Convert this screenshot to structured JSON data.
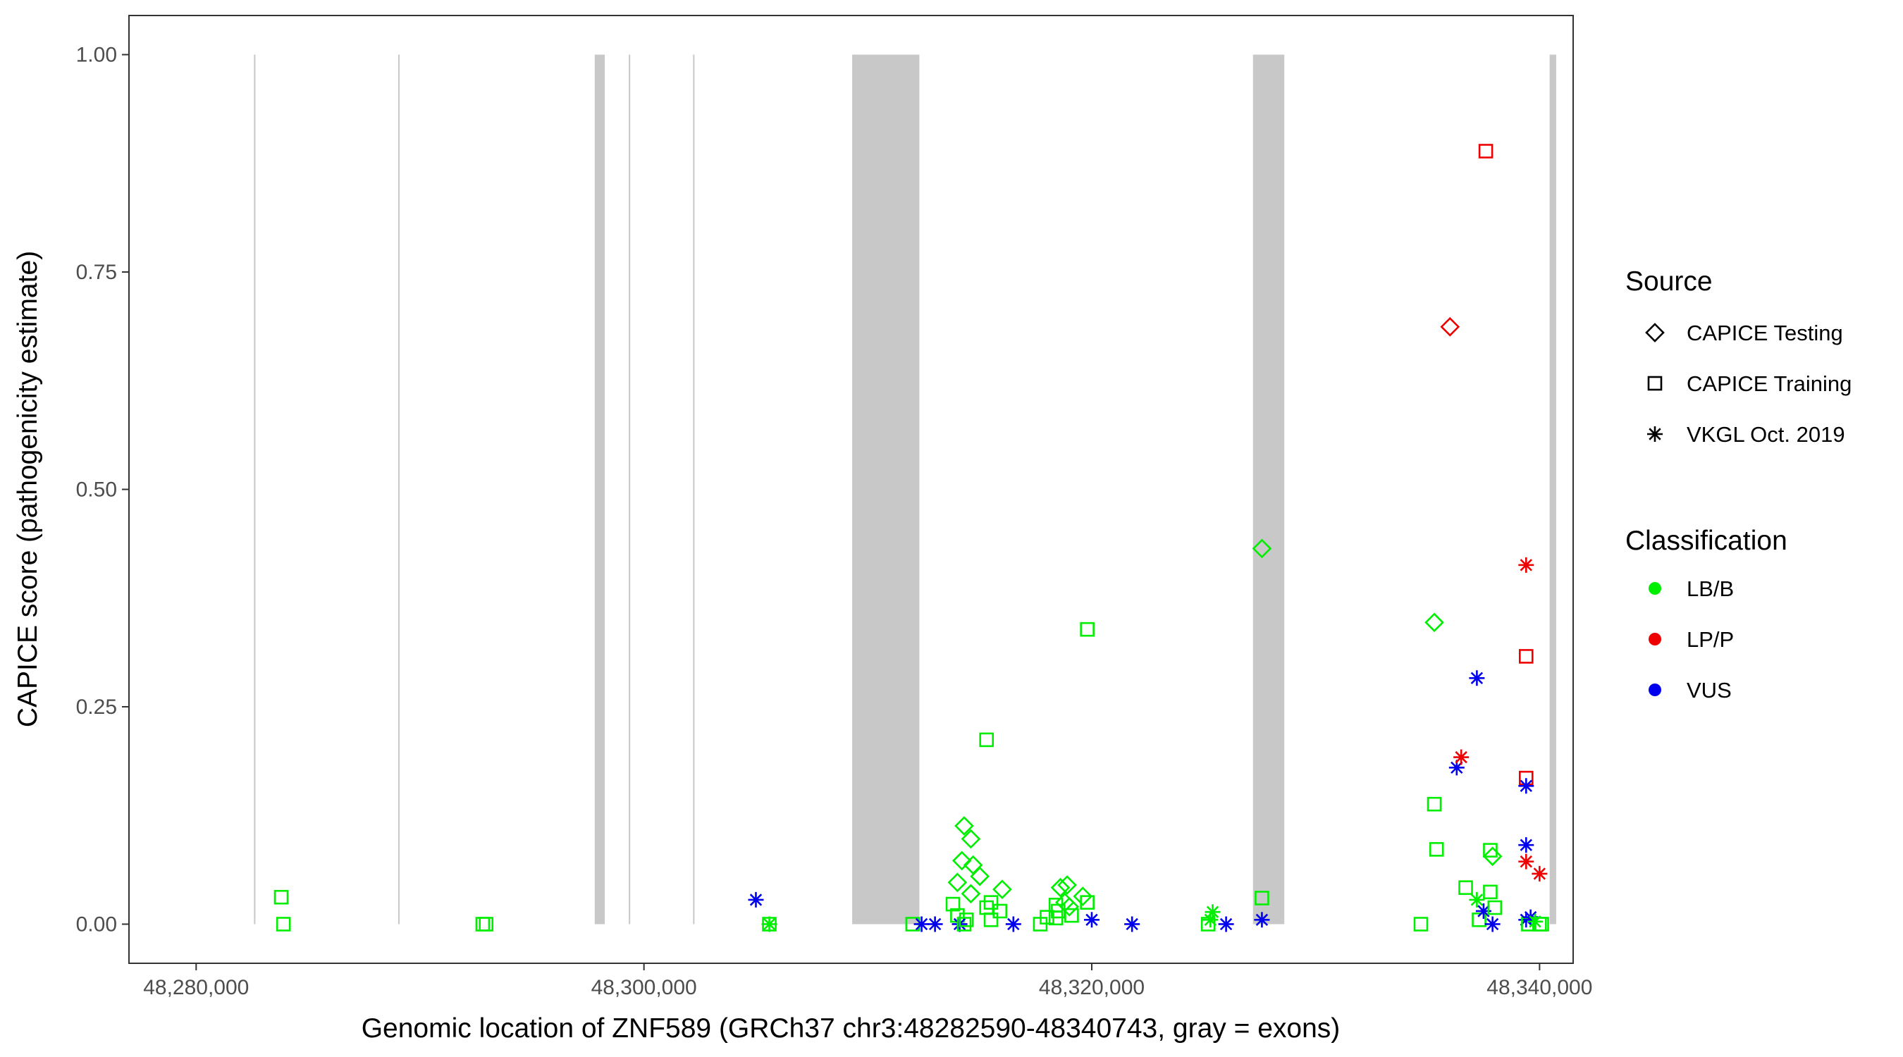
{
  "chart_data": {
    "type": "scatter",
    "title": "",
    "xlabel": "Genomic location of ZNF589 (GRCh37 chr3:48282590-48340743, gray = exons)",
    "ylabel": "CAPICE score (pathogenicity estimate)",
    "xlim": [
      48277000,
      48341500
    ],
    "ylim": [
      -0.045,
      1.045
    ],
    "x_ticks": [
      48280000,
      48300000,
      48320000,
      48340000
    ],
    "x_tick_labels": [
      "48,280,000",
      "48,300,000",
      "48,320,000",
      "48,340,000"
    ],
    "y_ticks": [
      0,
      0.25,
      0.5,
      0.75,
      1.0
    ],
    "y_tick_labels": [
      "0.00",
      "0.25",
      "0.50",
      "0.75",
      "1.00"
    ],
    "grid": false,
    "exons": [
      [
        48282590,
        48282640
      ],
      [
        48289030,
        48289080
      ],
      [
        48297800,
        48298250
      ],
      [
        48299330,
        48299380
      ],
      [
        48302200,
        48302250
      ],
      [
        48309300,
        48312300
      ],
      [
        48327200,
        48328600
      ],
      [
        48340450,
        48340743
      ]
    ],
    "exon_color": "#c8c8c8",
    "shape_legend": {
      "title": "Source",
      "items": [
        {
          "key": "testing",
          "label": "CAPICE Testing",
          "shape": "diamond"
        },
        {
          "key": "training",
          "label": "CAPICE Training",
          "shape": "square"
        },
        {
          "key": "vkgl",
          "label": "VKGL Oct. 2019",
          "shape": "asterisk"
        }
      ]
    },
    "color_legend": {
      "title": "Classification",
      "items": [
        {
          "key": "LB/B",
          "label": "LB/B",
          "color": "#00ee00"
        },
        {
          "key": "LP/P",
          "label": "LP/P",
          "color": "#ee0000"
        },
        {
          "key": "VUS",
          "label": "VUS",
          "color": "#0000ee"
        }
      ]
    },
    "points": [
      {
        "x": 48283800,
        "y": 0.031,
        "source": "training",
        "class": "LB/B"
      },
      {
        "x": 48283900,
        "y": 0.0,
        "source": "training",
        "class": "LB/B"
      },
      {
        "x": 48292800,
        "y": 0.0,
        "source": "training",
        "class": "LB/B"
      },
      {
        "x": 48292950,
        "y": 0.0,
        "source": "training",
        "class": "LB/B"
      },
      {
        "x": 48305000,
        "y": 0.028,
        "source": "vkgl",
        "class": "VUS"
      },
      {
        "x": 48305600,
        "y": 0.0,
        "source": "vkgl",
        "class": "LB/B"
      },
      {
        "x": 48305600,
        "y": 0.0,
        "source": "training",
        "class": "LB/B"
      },
      {
        "x": 48312000,
        "y": 0.0,
        "source": "training",
        "class": "LB/B"
      },
      {
        "x": 48312400,
        "y": 0.0,
        "source": "vkgl",
        "class": "VUS"
      },
      {
        "x": 48313000,
        "y": 0.0,
        "source": "vkgl",
        "class": "VUS"
      },
      {
        "x": 48313800,
        "y": 0.023,
        "source": "training",
        "class": "LB/B"
      },
      {
        "x": 48314000,
        "y": 0.01,
        "source": "training",
        "class": "LB/B"
      },
      {
        "x": 48314100,
        "y": 0.0,
        "source": "vkgl",
        "class": "VUS"
      },
      {
        "x": 48314300,
        "y": 0.0,
        "source": "training",
        "class": "LB/B"
      },
      {
        "x": 48314400,
        "y": 0.005,
        "source": "training",
        "class": "LB/B"
      },
      {
        "x": 48314000,
        "y": 0.048,
        "source": "testing",
        "class": "LB/B"
      },
      {
        "x": 48314200,
        "y": 0.073,
        "source": "testing",
        "class": "LB/B"
      },
      {
        "x": 48314300,
        "y": 0.113,
        "source": "testing",
        "class": "LB/B"
      },
      {
        "x": 48314600,
        "y": 0.098,
        "source": "testing",
        "class": "LB/B"
      },
      {
        "x": 48314700,
        "y": 0.068,
        "source": "testing",
        "class": "LB/B"
      },
      {
        "x": 48314600,
        "y": 0.035,
        "source": "testing",
        "class": "LB/B"
      },
      {
        "x": 48315000,
        "y": 0.055,
        "source": "testing",
        "class": "LB/B"
      },
      {
        "x": 48315300,
        "y": 0.212,
        "source": "training",
        "class": "LB/B"
      },
      {
        "x": 48315300,
        "y": 0.019,
        "source": "training",
        "class": "LB/B"
      },
      {
        "x": 48315500,
        "y": 0.025,
        "source": "training",
        "class": "LB/B"
      },
      {
        "x": 48315500,
        "y": 0.005,
        "source": "training",
        "class": "LB/B"
      },
      {
        "x": 48315900,
        "y": 0.015,
        "source": "training",
        "class": "LB/B"
      },
      {
        "x": 48316000,
        "y": 0.04,
        "source": "testing",
        "class": "LB/B"
      },
      {
        "x": 48316500,
        "y": 0.0,
        "source": "vkgl",
        "class": "VUS"
      },
      {
        "x": 48317700,
        "y": 0.0,
        "source": "training",
        "class": "LB/B"
      },
      {
        "x": 48318000,
        "y": 0.008,
        "source": "training",
        "class": "LB/B"
      },
      {
        "x": 48318400,
        "y": 0.022,
        "source": "training",
        "class": "LB/B"
      },
      {
        "x": 48318500,
        "y": 0.015,
        "source": "training",
        "class": "LB/B"
      },
      {
        "x": 48318400,
        "y": 0.007,
        "source": "training",
        "class": "LB/B"
      },
      {
        "x": 48318600,
        "y": 0.042,
        "source": "testing",
        "class": "LB/B"
      },
      {
        "x": 48318900,
        "y": 0.045,
        "source": "testing",
        "class": "LB/B"
      },
      {
        "x": 48318800,
        "y": 0.025,
        "source": "testing",
        "class": "LB/B"
      },
      {
        "x": 48319000,
        "y": 0.02,
        "source": "testing",
        "class": "LB/B"
      },
      {
        "x": 48319100,
        "y": 0.01,
        "source": "training",
        "class": "LB/B"
      },
      {
        "x": 48319600,
        "y": 0.032,
        "source": "testing",
        "class": "LB/B"
      },
      {
        "x": 48319800,
        "y": 0.025,
        "source": "training",
        "class": "LB/B"
      },
      {
        "x": 48319800,
        "y": 0.339,
        "source": "training",
        "class": "LB/B"
      },
      {
        "x": 48320000,
        "y": 0.005,
        "source": "vkgl",
        "class": "VUS"
      },
      {
        "x": 48321800,
        "y": 0.0,
        "source": "vkgl",
        "class": "VUS"
      },
      {
        "x": 48325200,
        "y": 0.0,
        "source": "training",
        "class": "LB/B"
      },
      {
        "x": 48325300,
        "y": 0.005,
        "source": "vkgl",
        "class": "LB/B"
      },
      {
        "x": 48325400,
        "y": 0.014,
        "source": "vkgl",
        "class": "LB/B"
      },
      {
        "x": 48326000,
        "y": 0.0,
        "source": "vkgl",
        "class": "VUS"
      },
      {
        "x": 48327600,
        "y": 0.432,
        "source": "testing",
        "class": "LB/B"
      },
      {
        "x": 48327600,
        "y": 0.03,
        "source": "training",
        "class": "LB/B"
      },
      {
        "x": 48327600,
        "y": 0.005,
        "source": "vkgl",
        "class": "VUS"
      },
      {
        "x": 48334700,
        "y": 0.0,
        "source": "training",
        "class": "LB/B"
      },
      {
        "x": 48335300,
        "y": 0.347,
        "source": "testing",
        "class": "LB/B"
      },
      {
        "x": 48335300,
        "y": 0.138,
        "source": "training",
        "class": "LB/B"
      },
      {
        "x": 48335400,
        "y": 0.086,
        "source": "training",
        "class": "LB/B"
      },
      {
        "x": 48336000,
        "y": 0.687,
        "source": "testing",
        "class": "LP/P"
      },
      {
        "x": 48336300,
        "y": 0.18,
        "source": "vkgl",
        "class": "VUS"
      },
      {
        "x": 48336500,
        "y": 0.192,
        "source": "vkgl",
        "class": "LP/P"
      },
      {
        "x": 48336700,
        "y": 0.042,
        "source": "training",
        "class": "LB/B"
      },
      {
        "x": 48337200,
        "y": 0.283,
        "source": "vkgl",
        "class": "VUS"
      },
      {
        "x": 48337200,
        "y": 0.028,
        "source": "vkgl",
        "class": "LB/B"
      },
      {
        "x": 48337300,
        "y": 0.005,
        "source": "training",
        "class": "LB/B"
      },
      {
        "x": 48337500,
        "y": 0.015,
        "source": "vkgl",
        "class": "VUS"
      },
      {
        "x": 48337600,
        "y": 0.889,
        "source": "training",
        "class": "LP/P"
      },
      {
        "x": 48337800,
        "y": 0.085,
        "source": "training",
        "class": "LB/B"
      },
      {
        "x": 48337900,
        "y": 0.078,
        "source": "testing",
        "class": "LB/B"
      },
      {
        "x": 48337800,
        "y": 0.037,
        "source": "training",
        "class": "LB/B"
      },
      {
        "x": 48338000,
        "y": 0.019,
        "source": "training",
        "class": "LB/B"
      },
      {
        "x": 48337900,
        "y": 0.0,
        "source": "vkgl",
        "class": "VUS"
      },
      {
        "x": 48339400,
        "y": 0.413,
        "source": "vkgl",
        "class": "LP/P"
      },
      {
        "x": 48339400,
        "y": 0.308,
        "source": "training",
        "class": "LP/P"
      },
      {
        "x": 48339400,
        "y": 0.168,
        "source": "training",
        "class": "LP/P"
      },
      {
        "x": 48339400,
        "y": 0.159,
        "source": "vkgl",
        "class": "VUS"
      },
      {
        "x": 48339400,
        "y": 0.091,
        "source": "vkgl",
        "class": "VUS"
      },
      {
        "x": 48339400,
        "y": 0.072,
        "source": "vkgl",
        "class": "LP/P"
      },
      {
        "x": 48339400,
        "y": 0.005,
        "source": "vkgl",
        "class": "VUS"
      },
      {
        "x": 48339500,
        "y": 0.0,
        "source": "training",
        "class": "LB/B"
      },
      {
        "x": 48339600,
        "y": 0.008,
        "source": "vkgl",
        "class": "VUS"
      },
      {
        "x": 48339800,
        "y": 0.003,
        "source": "vkgl",
        "class": "LB/B"
      },
      {
        "x": 48340000,
        "y": 0.058,
        "source": "vkgl",
        "class": "LP/P"
      },
      {
        "x": 48340000,
        "y": 0.0,
        "source": "training",
        "class": "LB/B"
      },
      {
        "x": 48340100,
        "y": 0.0,
        "source": "training",
        "class": "LB/B"
      }
    ]
  }
}
